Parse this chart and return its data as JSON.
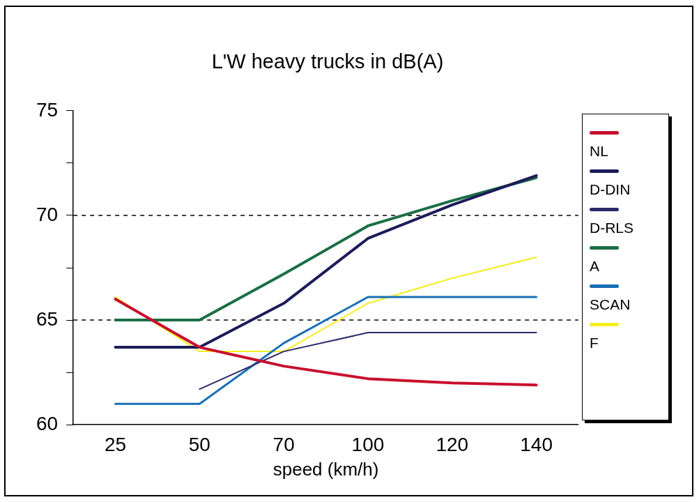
{
  "chart_data": {
    "type": "line",
    "title": "L'W heavy trucks in dB(A)",
    "xlabel": "speed (km/h)",
    "categories": [
      "25",
      "50",
      "70",
      "100",
      "120",
      "140"
    ],
    "ylim": [
      60,
      75
    ],
    "yticks": [
      60,
      {
        "value": 62.5,
        "label": null
      },
      65,
      {
        "value": 67.5,
        "label": null
      },
      70,
      {
        "value": 72.5,
        "label": null
      },
      75
    ],
    "grid": false,
    "legend": "right",
    "marker": "none",
    "line_style": "solid",
    "ref_lines": [
      {
        "axis": "y",
        "value": 65,
        "color": "#000000",
        "line_style": "dashed"
      },
      {
        "axis": "y",
        "value": 70,
        "color": "#000000",
        "line_style": "dashed"
      }
    ],
    "series": [
      {
        "name": "NL",
        "color": "#c8102e",
        "values": [
          66,
          63.7,
          62.8,
          62.2,
          62,
          61.9
        ]
      },
      {
        "name": "D-DIN",
        "color": "#1c1c5a",
        "values": [
          63.7,
          63.7,
          65.8,
          68.9,
          70.5,
          71.9
        ]
      },
      {
        "name": "D-RLS",
        "color": "#2a2a6a",
        "values": [
          null,
          61.7,
          63.5,
          64.4,
          64.4,
          64.4
        ]
      },
      {
        "name": "A",
        "color": "#1b6e45",
        "values": [
          65,
          65,
          67.2,
          69.5,
          70.7,
          71.8
        ]
      },
      {
        "name": "SCAN",
        "color": "#1a6fb5",
        "values": [
          61,
          61,
          63.9,
          66.1,
          66.1,
          66.1
        ]
      },
      {
        "name": "F",
        "color": "#f5ee1e",
        "values": [
          66.1,
          63.5,
          63.5,
          65.8,
          67,
          68
        ]
      }
    ]
  }
}
